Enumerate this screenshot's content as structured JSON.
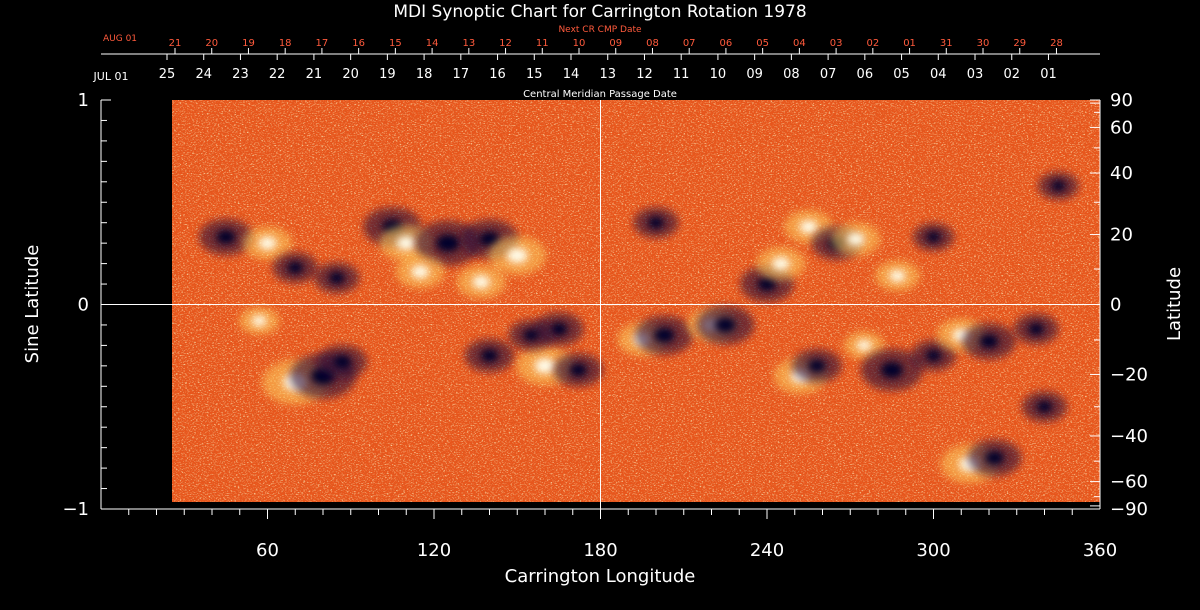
{
  "chart_data": {
    "type": "heatmap",
    "title": "MDI Synoptic Chart for Carrington Rotation 1978",
    "xlabel": "Carrington Longitude",
    "ylabel_left": "Sine Latitude",
    "ylabel_right": "Latitude",
    "xlim": [
      0,
      360
    ],
    "ylim": [
      -1,
      1
    ],
    "data_start_longitude": 25,
    "x_ticks": [
      60,
      120,
      180,
      240,
      300,
      360
    ],
    "y_left_ticks": [
      {
        "value": 1,
        "label": "1"
      },
      {
        "value": 0,
        "label": "0"
      },
      {
        "value": -1,
        "label": "−1"
      }
    ],
    "y_right_ticks": [
      {
        "deg": 90,
        "label": "90"
      },
      {
        "deg": 60,
        "label": "60"
      },
      {
        "deg": 40,
        "label": "40"
      },
      {
        "deg": 20,
        "label": "20"
      },
      {
        "deg": 0,
        "label": "0"
      },
      {
        "deg": -20,
        "label": "−20"
      },
      {
        "deg": -40,
        "label": "−40"
      },
      {
        "deg": -60,
        "label": "−60"
      },
      {
        "deg": -90,
        "label": "−90"
      }
    ],
    "top_axis_title": "Central Meridian Passage Date",
    "top_axis_month": "JUL 01",
    "top_axis_dates": [
      "25",
      "24",
      "23",
      "22",
      "21",
      "20",
      "19",
      "18",
      "17",
      "16",
      "15",
      "14",
      "13",
      "12",
      "11",
      "10",
      "09",
      "08",
      "07",
      "06",
      "05",
      "04",
      "03",
      "02",
      "01"
    ],
    "next_axis_title": "Next CR CMP Date",
    "next_axis_month": "AUG 01",
    "next_axis_dates": [
      "21",
      "20",
      "19",
      "18",
      "17",
      "16",
      "15",
      "14",
      "13",
      "12",
      "11",
      "10",
      "09",
      "08",
      "07",
      "06",
      "05",
      "04",
      "03",
      "02",
      "01",
      "31",
      "30",
      "29",
      "28"
    ],
    "crosshair": {
      "longitude": 180,
      "sine_latitude": 0
    },
    "regions": [
      {
        "lon": 45,
        "sinlat": 0.33,
        "polarity": "negative",
        "strength": 0.7
      },
      {
        "lon": 60,
        "sinlat": 0.3,
        "polarity": "positive",
        "strength": 0.6
      },
      {
        "lon": 70,
        "sinlat": 0.18,
        "polarity": "negative",
        "strength": 0.5
      },
      {
        "lon": 85,
        "sinlat": 0.13,
        "polarity": "negative",
        "strength": 0.5
      },
      {
        "lon": 105,
        "sinlat": 0.38,
        "polarity": "negative",
        "strength": 0.8
      },
      {
        "lon": 110,
        "sinlat": 0.3,
        "polarity": "positive",
        "strength": 0.7
      },
      {
        "lon": 125,
        "sinlat": 0.3,
        "polarity": "negative",
        "strength": 1.0
      },
      {
        "lon": 140,
        "sinlat": 0.32,
        "polarity": "negative",
        "strength": 0.8
      },
      {
        "lon": 150,
        "sinlat": 0.24,
        "polarity": "positive",
        "strength": 0.8
      },
      {
        "lon": 115,
        "sinlat": 0.16,
        "polarity": "positive",
        "strength": 0.6
      },
      {
        "lon": 137,
        "sinlat": 0.11,
        "polarity": "positive",
        "strength": 0.6
      },
      {
        "lon": 200,
        "sinlat": 0.4,
        "polarity": "negative",
        "strength": 0.5
      },
      {
        "lon": 240,
        "sinlat": 0.1,
        "polarity": "negative",
        "strength": 0.7
      },
      {
        "lon": 245,
        "sinlat": 0.2,
        "polarity": "positive",
        "strength": 0.6
      },
      {
        "lon": 255,
        "sinlat": 0.38,
        "polarity": "positive",
        "strength": 0.6
      },
      {
        "lon": 265,
        "sinlat": 0.3,
        "polarity": "negative",
        "strength": 0.6
      },
      {
        "lon": 272,
        "sinlat": 0.32,
        "polarity": "positive",
        "strength": 0.6
      },
      {
        "lon": 287,
        "sinlat": 0.14,
        "polarity": "positive",
        "strength": 0.5
      },
      {
        "lon": 300,
        "sinlat": 0.33,
        "polarity": "negative",
        "strength": 0.4
      },
      {
        "lon": 345,
        "sinlat": 0.58,
        "polarity": "negative",
        "strength": 0.4
      },
      {
        "lon": 57,
        "sinlat": -0.08,
        "polarity": "positive",
        "strength": 0.4
      },
      {
        "lon": 70,
        "sinlat": -0.38,
        "polarity": "positive",
        "strength": 1.0
      },
      {
        "lon": 80,
        "sinlat": -0.35,
        "polarity": "negative",
        "strength": 1.0
      },
      {
        "lon": 87,
        "sinlat": -0.28,
        "polarity": "negative",
        "strength": 0.6
      },
      {
        "lon": 140,
        "sinlat": -0.25,
        "polarity": "negative",
        "strength": 0.6
      },
      {
        "lon": 160,
        "sinlat": -0.3,
        "polarity": "positive",
        "strength": 0.8
      },
      {
        "lon": 165,
        "sinlat": -0.12,
        "polarity": "negative",
        "strength": 0.6
      },
      {
        "lon": 172,
        "sinlat": -0.32,
        "polarity": "negative",
        "strength": 0.6
      },
      {
        "lon": 155,
        "sinlat": -0.15,
        "polarity": "negative",
        "strength": 0.5
      },
      {
        "lon": 195,
        "sinlat": -0.17,
        "polarity": "positive",
        "strength": 0.6
      },
      {
        "lon": 203,
        "sinlat": -0.15,
        "polarity": "negative",
        "strength": 0.8
      },
      {
        "lon": 220,
        "sinlat": -0.1,
        "polarity": "positive",
        "strength": 0.6
      },
      {
        "lon": 225,
        "sinlat": -0.1,
        "polarity": "negative",
        "strength": 0.8
      },
      {
        "lon": 252,
        "sinlat": -0.35,
        "polarity": "positive",
        "strength": 0.7
      },
      {
        "lon": 258,
        "sinlat": -0.3,
        "polarity": "negative",
        "strength": 0.6
      },
      {
        "lon": 275,
        "sinlat": -0.2,
        "polarity": "positive",
        "strength": 0.4
      },
      {
        "lon": 285,
        "sinlat": -0.32,
        "polarity": "negative",
        "strength": 0.9
      },
      {
        "lon": 300,
        "sinlat": -0.25,
        "polarity": "negative",
        "strength": 0.5
      },
      {
        "lon": 310,
        "sinlat": -0.15,
        "polarity": "positive",
        "strength": 0.6
      },
      {
        "lon": 320,
        "sinlat": -0.18,
        "polarity": "negative",
        "strength": 0.7
      },
      {
        "lon": 337,
        "sinlat": -0.12,
        "polarity": "negative",
        "strength": 0.5
      },
      {
        "lon": 340,
        "sinlat": -0.5,
        "polarity": "negative",
        "strength": 0.5
      },
      {
        "lon": 313,
        "sinlat": -0.78,
        "polarity": "positive",
        "strength": 0.8
      },
      {
        "lon": 322,
        "sinlat": -0.75,
        "polarity": "negative",
        "strength": 0.7
      }
    ]
  }
}
